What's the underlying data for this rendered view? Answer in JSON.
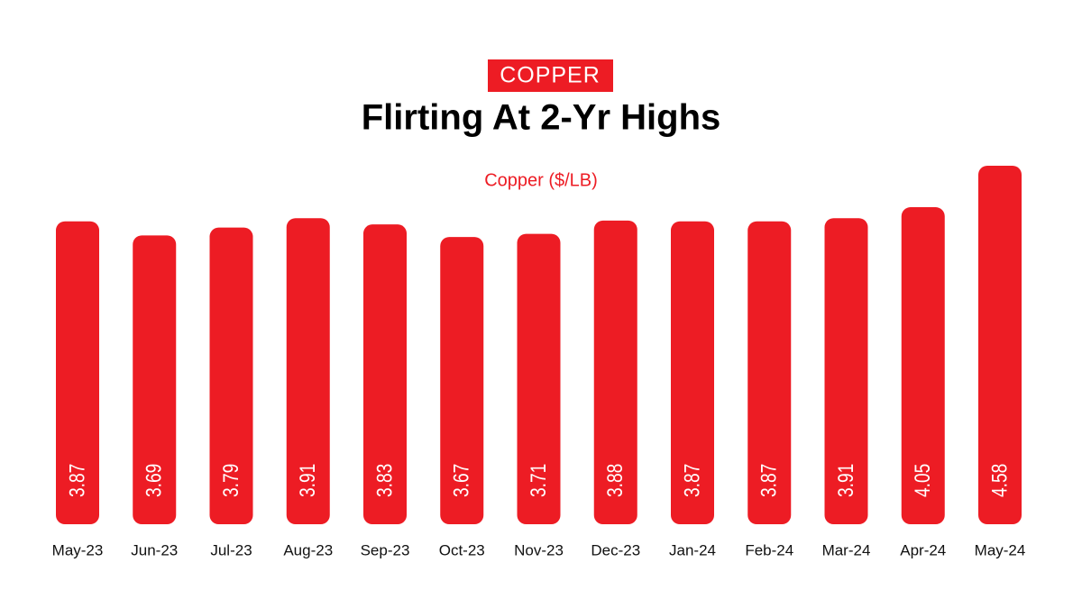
{
  "chart_data": {
    "type": "bar",
    "kicker": "COPPER",
    "title": "Flirting At 2-Yr Highs",
    "categories": [
      "May-23",
      "Jun-23",
      "Jul-23",
      "Aug-23",
      "Sep-23",
      "Oct-23",
      "Nov-23",
      "Dec-23",
      "Jan-24",
      "Feb-24",
      "Mar-24",
      "Apr-24",
      "May-24"
    ],
    "series": [
      {
        "name": "Copper ($/LB)",
        "color": "#ed1c24",
        "values": [
          3.87,
          3.69,
          3.79,
          3.91,
          3.83,
          3.67,
          3.71,
          3.88,
          3.87,
          3.87,
          3.91,
          4.05,
          4.58
        ]
      }
    ]
  }
}
